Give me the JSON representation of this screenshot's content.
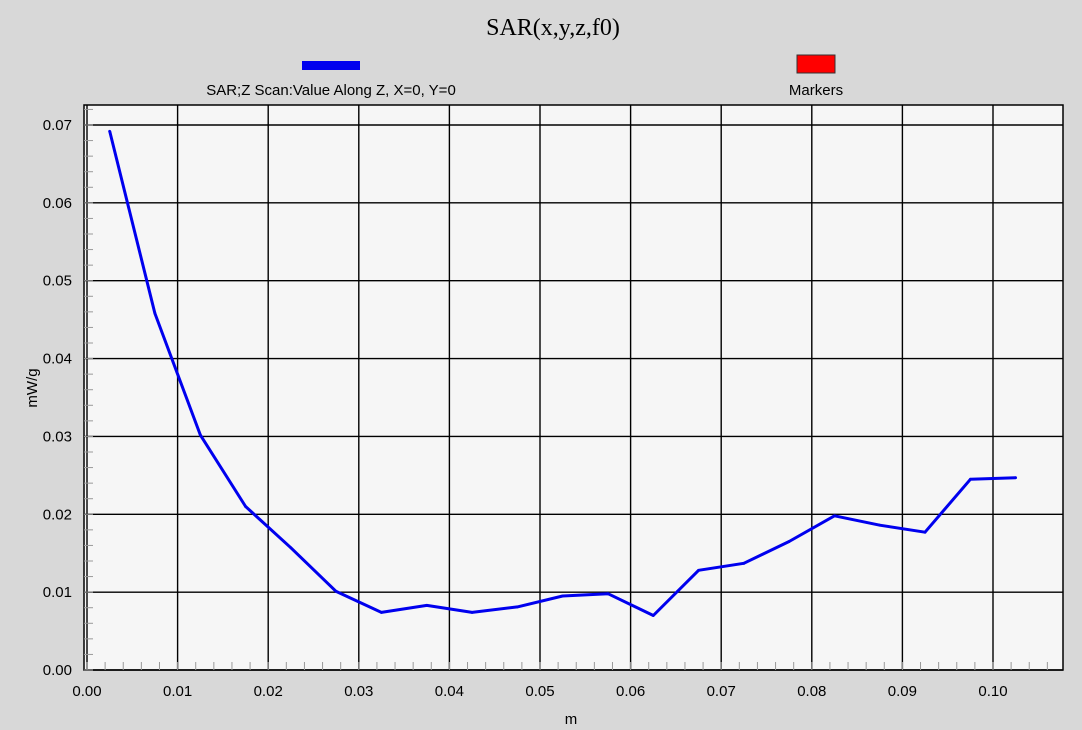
{
  "chart_data": {
    "type": "line",
    "title": "SAR(x,y,z,f0)",
    "xlabel": "m",
    "ylabel": "mW/g",
    "xlim": [
      0.0,
      0.107
    ],
    "ylim": [
      0.0,
      0.072
    ],
    "x_ticks": [
      "0.00",
      "0.01",
      "0.02",
      "0.03",
      "0.04",
      "0.05",
      "0.06",
      "0.07",
      "0.08",
      "0.09",
      "0.10"
    ],
    "y_ticks": [
      "0.00",
      "0.01",
      "0.02",
      "0.03",
      "0.04",
      "0.05",
      "0.06",
      "0.07"
    ],
    "grid": true,
    "legend_placement": "top",
    "series": [
      {
        "name": "SAR;Z Scan:Value Along Z, X=0, Y=0",
        "color": "#0000ee",
        "x": [
          0.0025,
          0.0075,
          0.0125,
          0.0175,
          0.0225,
          0.0275,
          0.0325,
          0.0375,
          0.0425,
          0.0475,
          0.0525,
          0.0575,
          0.0625,
          0.0675,
          0.0725,
          0.0775,
          0.0825,
          0.0875,
          0.0925,
          0.0975,
          0.1025
        ],
        "y": [
          0.0692,
          0.0458,
          0.0302,
          0.021,
          0.0157,
          0.0101,
          0.0074,
          0.0083,
          0.0074,
          0.0081,
          0.0095,
          0.0098,
          0.007,
          0.0128,
          0.0137,
          0.0165,
          0.0198,
          0.0186,
          0.0177,
          0.0245,
          0.0247
        ]
      }
    ],
    "legend": [
      {
        "label": "SAR;Z Scan:Value Along Z, X=0, Y=0",
        "color": "#0000ee"
      },
      {
        "label": "Markers",
        "color": "#ff0000"
      }
    ]
  }
}
